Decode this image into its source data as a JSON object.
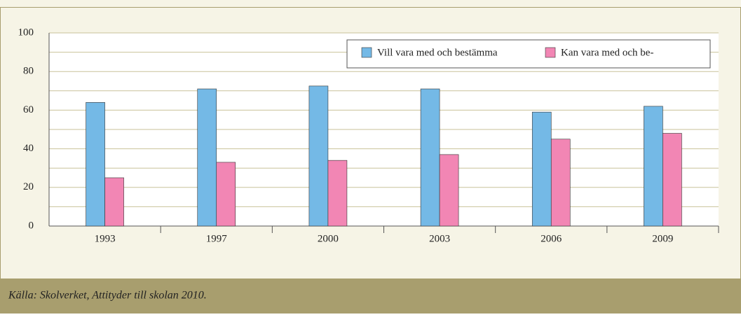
{
  "chart_data": {
    "type": "bar",
    "categories": [
      "1993",
      "1997",
      "2000",
      "2003",
      "2006",
      "2009"
    ],
    "series": [
      {
        "name": "Vill vara med och bestämma",
        "color": "#74b9e6",
        "values": [
          64,
          71,
          72.5,
          71,
          59,
          62
        ]
      },
      {
        "name": "Kan vara med och be-",
        "color": "#f286b4",
        "values": [
          25,
          33,
          34,
          37,
          45,
          48
        ]
      }
    ],
    "ylim": [
      0,
      100
    ],
    "yticks": [
      0,
      20,
      40,
      60,
      80,
      100
    ],
    "minor_yticks": [
      10,
      30,
      50,
      70,
      90
    ],
    "grid": true,
    "legend": "top-right",
    "source": "Källa: Skolverket, Attityder till skolan 2010."
  }
}
